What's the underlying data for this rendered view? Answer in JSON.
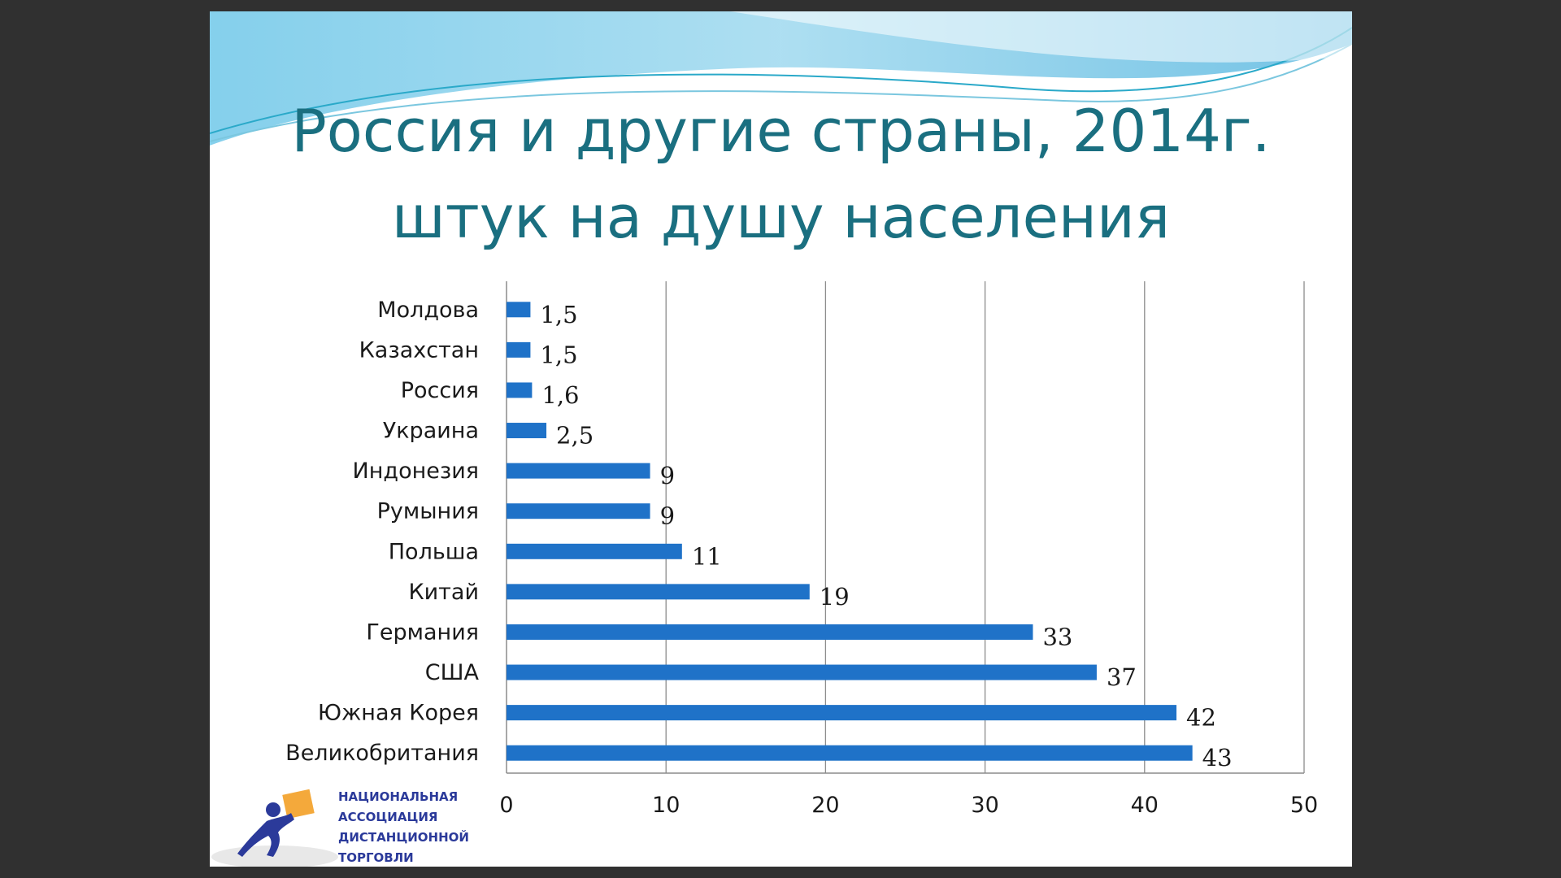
{
  "slide": {
    "title_line1": "Россия и другие страны, 2014г.",
    "title_line2": "штук на душу населения"
  },
  "logo": {
    "name": "logo-icon",
    "lines": [
      "НАЦИОНАЛЬНАЯ",
      "АССОЦИАЦИЯ",
      "ДИСТАНЦИОННОЙ",
      "ТОРГОВЛИ"
    ]
  },
  "colors": {
    "bar": "#1f72c8",
    "title": "#1a6f80",
    "grid": "#8c8c8c",
    "logo_text": "#2b3a9a",
    "logo_box": "#f4a93b"
  },
  "chart_data": {
    "type": "bar",
    "orientation": "horizontal",
    "title": "",
    "xlabel": "",
    "ylabel": "",
    "categories": [
      "Молдова",
      "Казахстан",
      "Россия",
      "Украина",
      "Индонезия",
      "Румыния",
      "Польша",
      "Китай",
      "Германия",
      "США",
      "Южная Корея",
      "Великобритания"
    ],
    "values": [
      1.5,
      1.5,
      1.6,
      2.5,
      9,
      9,
      11,
      19,
      33,
      37,
      42,
      43
    ],
    "value_labels": [
      "1,5",
      "1,5",
      "1,6",
      "2,5",
      "9",
      "9",
      "11",
      "19",
      "33",
      "37",
      "42",
      "43"
    ],
    "xlim": [
      0,
      50
    ],
    "xticks": [
      0,
      10,
      20,
      30,
      40,
      50
    ],
    "grid": "vertical",
    "legend": "none"
  }
}
